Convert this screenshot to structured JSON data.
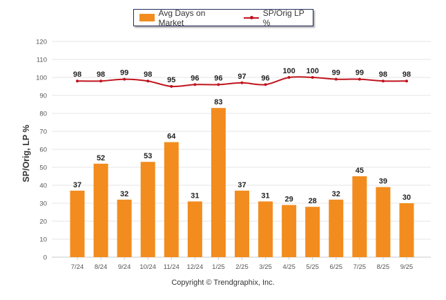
{
  "chart_data": {
    "type": "bar",
    "categories": [
      "7/24",
      "8/24",
      "9/24",
      "10/24",
      "11/24",
      "12/24",
      "1/25",
      "2/25",
      "3/25",
      "4/25",
      "5/25",
      "6/25",
      "7/25",
      "8/25",
      "9/25"
    ],
    "series": [
      {
        "name": "Avg Days on Market",
        "type": "bar",
        "color": "#f28c1e",
        "values": [
          37,
          52,
          32,
          53,
          64,
          31,
          83,
          37,
          31,
          29,
          28,
          32,
          45,
          39,
          30
        ]
      },
      {
        "name": "SP/Orig LP %",
        "type": "line",
        "color": "#c0121c",
        "values": [
          98,
          98,
          99,
          98,
          95,
          96,
          96,
          97,
          96,
          100,
          100,
          99,
          99,
          98,
          98
        ]
      }
    ],
    "ylabel": "SP/Orig, LP %",
    "ylim": [
      0,
      120
    ],
    "yticks": [
      0,
      10,
      20,
      30,
      40,
      50,
      60,
      70,
      80,
      90,
      100,
      110,
      120
    ],
    "grid": true,
    "legend": "top-center"
  },
  "footer": {
    "copyright": "Copyright © Trendgraphix, Inc."
  }
}
